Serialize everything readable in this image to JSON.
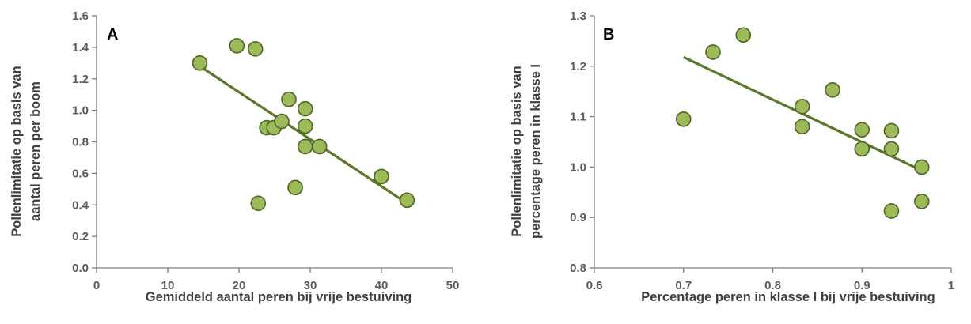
{
  "colors": {
    "point_fill": "#9bbb59",
    "point_stroke": "#4f6228",
    "trendline": "#5a7a2a",
    "axis": "#7f7f7f"
  },
  "chart_data": [
    {
      "type": "scatter",
      "panel_label": "A",
      "title": "",
      "xlabel": "Gemiddeld aantal peren bij vrije bestuiving",
      "ylabel_lines": [
        "Pollenlimitatie  op basis van",
        "aantal peren per boom"
      ],
      "xlim": [
        0,
        50
      ],
      "ylim": [
        0,
        1.6
      ],
      "xticks": [
        "0",
        "10",
        "20",
        "30",
        "40",
        "50"
      ],
      "yticks": [
        "0.0",
        "0.2",
        "0.4",
        "0.6",
        "0.8",
        "1.0",
        "1.2",
        "1.4",
        "1.6"
      ],
      "grid": false,
      "points": [
        {
          "x": 14.5,
          "y": 1.3
        },
        {
          "x": 19.7,
          "y": 1.41
        },
        {
          "x": 22.3,
          "y": 1.39
        },
        {
          "x": 22.7,
          "y": 0.41
        },
        {
          "x": 23.9,
          "y": 0.89
        },
        {
          "x": 24.9,
          "y": 0.89
        },
        {
          "x": 26.0,
          "y": 0.93
        },
        {
          "x": 27.0,
          "y": 1.07
        },
        {
          "x": 27.9,
          "y": 0.51
        },
        {
          "x": 29.3,
          "y": 1.01
        },
        {
          "x": 29.3,
          "y": 0.9
        },
        {
          "x": 29.3,
          "y": 0.77
        },
        {
          "x": 31.3,
          "y": 0.77
        },
        {
          "x": 40.0,
          "y": 0.58
        },
        {
          "x": 43.6,
          "y": 0.43
        }
      ],
      "trendline": {
        "x": [
          14.5,
          43.6
        ],
        "y": [
          1.28,
          0.41
        ]
      }
    },
    {
      "type": "scatter",
      "panel_label": "B",
      "title": "",
      "xlabel": "Percentage peren in klasse I bij vrije bestuiving",
      "ylabel_lines": [
        "Pollenlimitatie  op basis van",
        "percentage peren in klasse I"
      ],
      "xlim": [
        0.6,
        1.0
      ],
      "ylim": [
        0.8,
        1.3
      ],
      "xticks": [
        "0.6",
        "0.7",
        "0.8",
        "0.9",
        "1"
      ],
      "yticks": [
        "0.8",
        "0.9",
        "1.0",
        "1.1",
        "1.2",
        "1.3"
      ],
      "grid": false,
      "points": [
        {
          "x": 0.7,
          "y": 1.095
        },
        {
          "x": 0.733,
          "y": 1.228
        },
        {
          "x": 0.767,
          "y": 1.262
        },
        {
          "x": 0.833,
          "y": 1.12
        },
        {
          "x": 0.833,
          "y": 1.08
        },
        {
          "x": 0.867,
          "y": 1.153
        },
        {
          "x": 0.9,
          "y": 1.074
        },
        {
          "x": 0.9,
          "y": 1.036
        },
        {
          "x": 0.933,
          "y": 1.072
        },
        {
          "x": 0.933,
          "y": 1.036
        },
        {
          "x": 0.933,
          "y": 0.913
        },
        {
          "x": 0.967,
          "y": 1.0
        },
        {
          "x": 0.967,
          "y": 0.932
        }
      ],
      "trendline": {
        "x": [
          0.7,
          0.967
        ],
        "y": [
          1.218,
          0.993
        ]
      }
    }
  ]
}
